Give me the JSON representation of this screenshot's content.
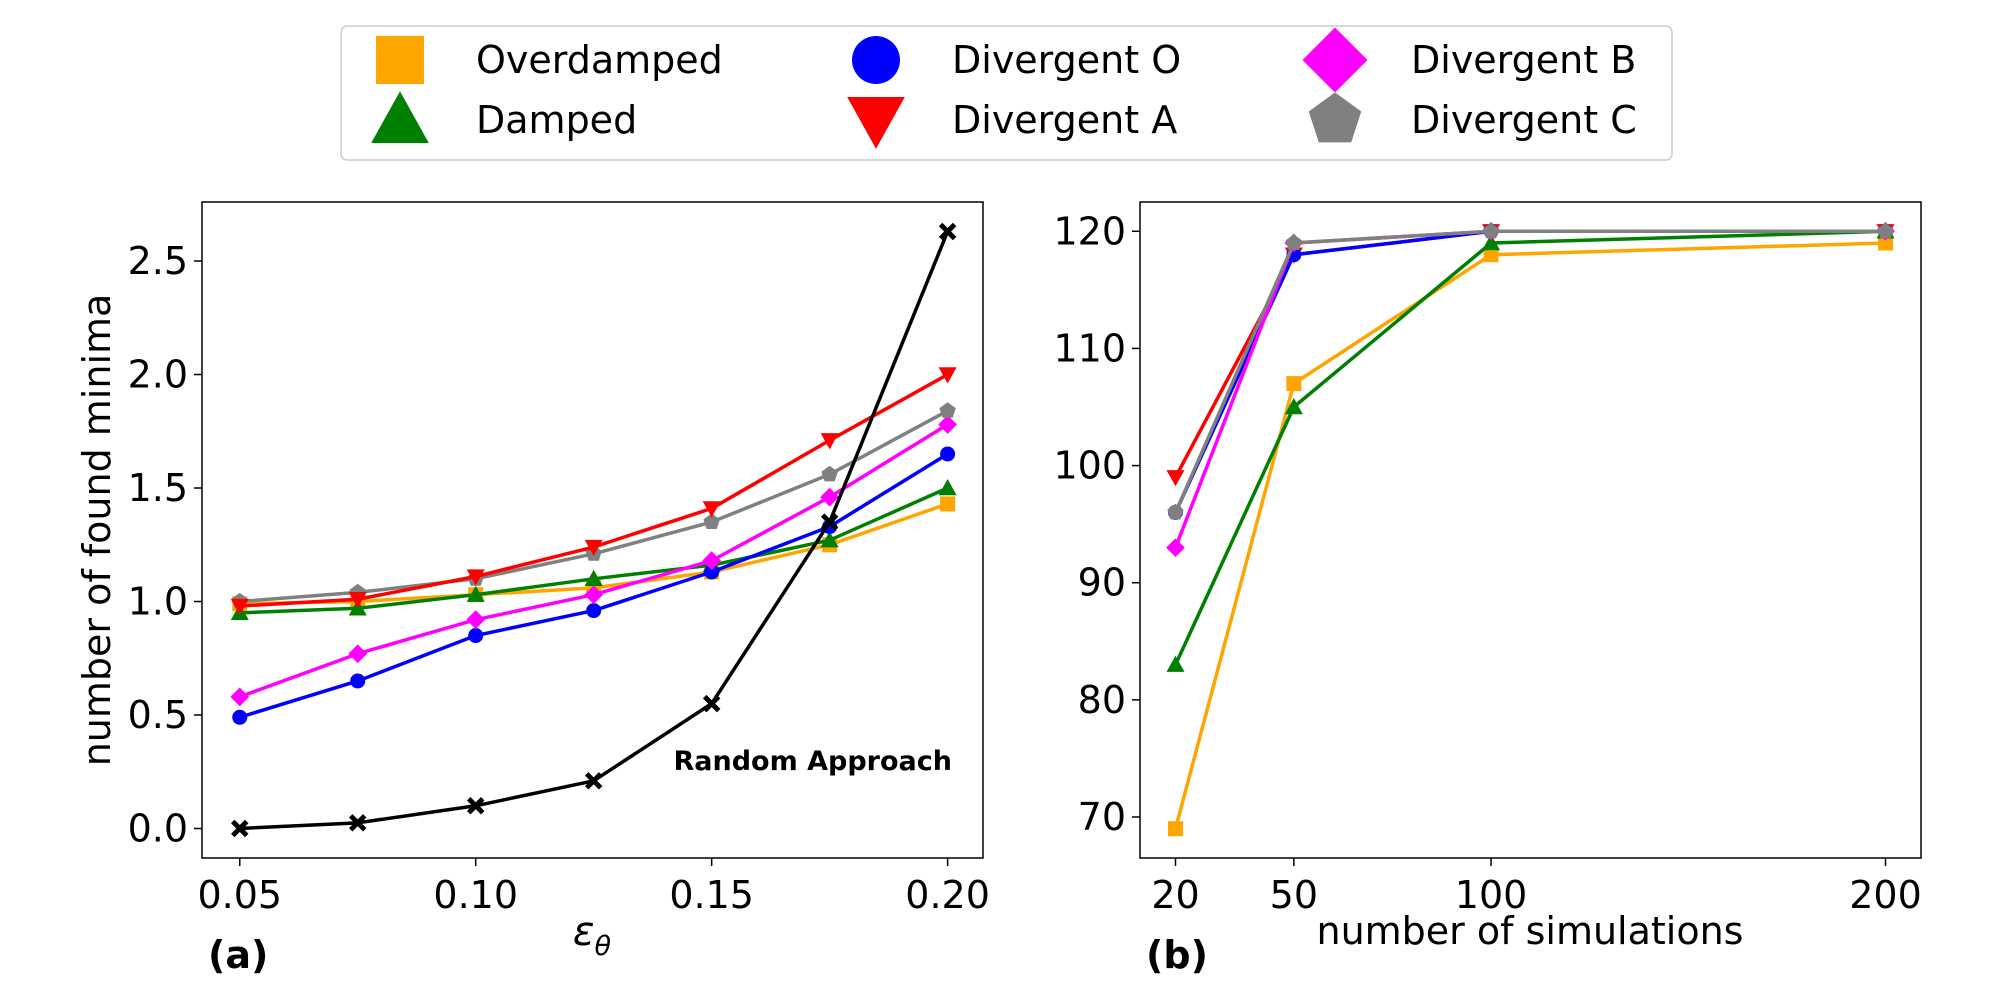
{
  "legend": {
    "items": [
      {
        "label": "Overdamped",
        "color": "#FFA500",
        "marker": "square"
      },
      {
        "label": "Divergent O",
        "color": "#0000FF",
        "marker": "circle"
      },
      {
        "label": "Divergent B",
        "color": "#FF00FF",
        "marker": "diamond"
      },
      {
        "label": "Damped",
        "color": "#008000",
        "marker": "triangle-up"
      },
      {
        "label": "Divergent A",
        "color": "#FF0000",
        "marker": "triangle-down"
      },
      {
        "label": "Divergent C",
        "color": "#808080",
        "marker": "pentagon"
      }
    ]
  },
  "chart_data": [
    {
      "type": "line",
      "panel_label": "(a)",
      "xlabel": "ε",
      "xlabel_sub": "θ",
      "ylabel": "number of found minima",
      "x": [
        0.05,
        0.075,
        0.1,
        0.125,
        0.15,
        0.175,
        0.2
      ],
      "xlim": [
        0.042,
        0.2075
      ],
      "ylim": [
        -0.13,
        2.76
      ],
      "xticks": [
        0.05,
        0.1,
        0.15,
        0.2
      ],
      "xtick_labels": [
        "0.05",
        "0.10",
        "0.15",
        "0.20"
      ],
      "yticks": [
        0.0,
        0.5,
        1.0,
        1.5,
        2.0,
        2.5
      ],
      "ytick_labels": [
        "0.0",
        "0.5",
        "1.0",
        "1.5",
        "2.0",
        "2.5"
      ],
      "annotation": "Random Approach",
      "series": [
        {
          "name": "Overdamped",
          "color": "#FFA500",
          "marker": "square",
          "values": [
            0.99,
            1.0,
            1.03,
            1.06,
            1.13,
            1.25,
            1.43
          ]
        },
        {
          "name": "Damped",
          "color": "#008000",
          "marker": "triangle-up",
          "values": [
            0.95,
            0.97,
            1.03,
            1.1,
            1.16,
            1.27,
            1.5
          ]
        },
        {
          "name": "Divergent O",
          "color": "#0000FF",
          "marker": "circle",
          "values": [
            0.49,
            0.65,
            0.85,
            0.96,
            1.13,
            1.33,
            1.65
          ]
        },
        {
          "name": "Divergent B",
          "color": "#FF00FF",
          "marker": "diamond",
          "values": [
            0.58,
            0.77,
            0.92,
            1.03,
            1.18,
            1.46,
            1.78
          ]
        },
        {
          "name": "Divergent C",
          "color": "#808080",
          "marker": "pentagon",
          "values": [
            1.0,
            1.04,
            1.1,
            1.21,
            1.35,
            1.56,
            1.84
          ]
        },
        {
          "name": "Divergent A",
          "color": "#FF0000",
          "marker": "triangle-down",
          "values": [
            0.98,
            1.01,
            1.11,
            1.24,
            1.41,
            1.71,
            2.0
          ]
        },
        {
          "name": "Random Approach",
          "color": "#000000",
          "marker": "x",
          "values": [
            0.0,
            0.025,
            0.1,
            0.21,
            0.55,
            1.35,
            2.63
          ]
        }
      ]
    },
    {
      "type": "line",
      "panel_label": "(b)",
      "xlabel": "number of simulations",
      "ylabel": "",
      "x": [
        20,
        50,
        100,
        200
      ],
      "xlim": [
        11,
        209
      ],
      "ylim": [
        66.5,
        122.5
      ],
      "xticks": [
        20,
        50,
        100,
        200
      ],
      "xtick_labels": [
        "20",
        "50",
        "100",
        "200"
      ],
      "yticks": [
        70,
        80,
        90,
        100,
        110,
        120
      ],
      "ytick_labels": [
        "70",
        "80",
        "90",
        "100",
        "110",
        "120"
      ],
      "series": [
        {
          "name": "Overdamped",
          "color": "#FFA500",
          "marker": "square",
          "values": [
            69,
            107,
            118,
            119
          ]
        },
        {
          "name": "Damped",
          "color": "#008000",
          "marker": "triangle-up",
          "values": [
            83,
            105,
            119,
            120
          ]
        },
        {
          "name": "Divergent A",
          "color": "#FF0000",
          "marker": "triangle-down",
          "values": [
            99,
            118,
            120,
            120
          ]
        },
        {
          "name": "Divergent O",
          "color": "#0000FF",
          "marker": "circle",
          "values": [
            96,
            118,
            120,
            120
          ]
        },
        {
          "name": "Divergent B",
          "color": "#FF00FF",
          "marker": "diamond",
          "values": [
            93,
            119,
            120,
            120
          ]
        },
        {
          "name": "Divergent C",
          "color": "#808080",
          "marker": "pentagon",
          "values": [
            96,
            119,
            120,
            120
          ]
        }
      ]
    }
  ]
}
